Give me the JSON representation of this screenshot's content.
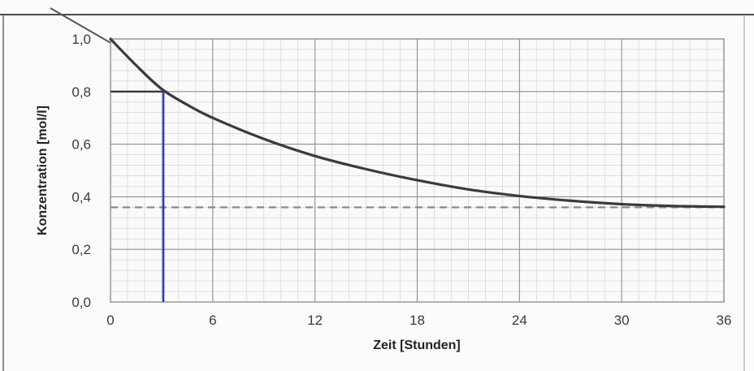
{
  "chart_data": {
    "type": "line",
    "title": "",
    "xlabel": "Zeit [Stunden]",
    "ylabel": "Konzentration [mol/l]",
    "xlim": [
      0,
      36
    ],
    "ylim": [
      0,
      1
    ],
    "grid": true,
    "x_ticks": [
      "0",
      "6",
      "12",
      "18",
      "24",
      "30",
      "36"
    ],
    "y_ticks": [
      "0,0",
      "0,2",
      "0,4",
      "0,6",
      "0,8",
      "1,0"
    ],
    "series": [
      {
        "x": [
          0,
          1.5,
          3,
          4.5,
          6,
          9,
          12,
          15,
          18,
          21,
          24,
          27,
          30,
          33,
          36
        ],
        "values": [
          1.0,
          0.9,
          0.81,
          0.75,
          0.7,
          0.62,
          0.555,
          0.505,
          0.463,
          0.428,
          0.403,
          0.385,
          0.372,
          0.365,
          0.362
        ],
        "color": "#3b3b3b"
      }
    ],
    "annotations": [
      {
        "type": "asymptote",
        "y": 0.36,
        "style": "dashed",
        "color": "#8a8a8a"
      },
      {
        "type": "marker-horizontal",
        "y": 0.8,
        "x_from": 0,
        "x_to": 3.3,
        "color": "#3a3a3a"
      },
      {
        "type": "marker-vertical",
        "x": 3.1,
        "y_from": 0,
        "y_to": 0.8,
        "color": "#2b3bb0"
      }
    ]
  }
}
